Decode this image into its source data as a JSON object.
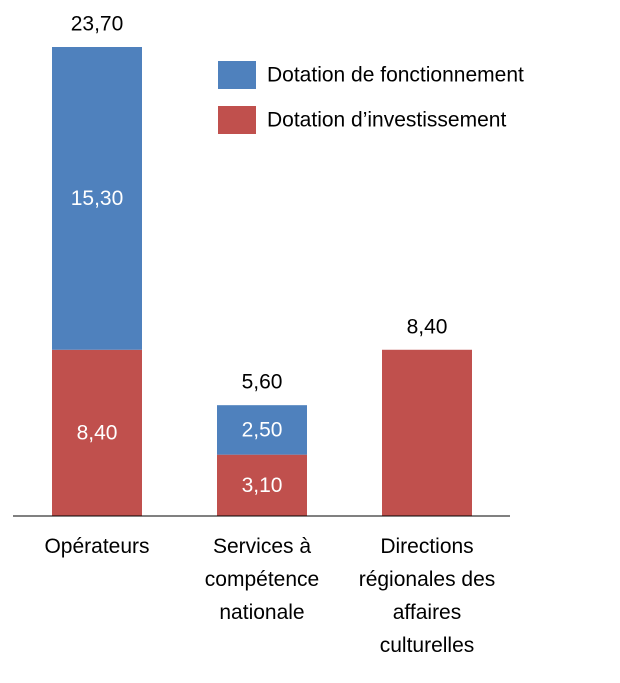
{
  "chart_data": {
    "type": "bar",
    "stacked": true,
    "categories": [
      "Opérateurs",
      "Services à compétence nationale",
      "Directions régionales des affaires culturelles"
    ],
    "series": [
      {
        "name": "Dotation d’investissement",
        "color": "#c0504d",
        "values": [
          8.4,
          3.1,
          8.4
        ],
        "value_labels": [
          "8,40",
          "3,10",
          null
        ]
      },
      {
        "name": "Dotation de fonctionnement",
        "color": "#4f81bd",
        "values": [
          15.3,
          2.5,
          null
        ],
        "value_labels": [
          "15,30",
          "2,50",
          null
        ]
      }
    ],
    "totals": {
      "values": [
        23.7,
        5.6,
        8.4
      ],
      "value_labels": [
        "23,70",
        "5,60",
        "8,40"
      ]
    },
    "legend": "top-right"
  }
}
